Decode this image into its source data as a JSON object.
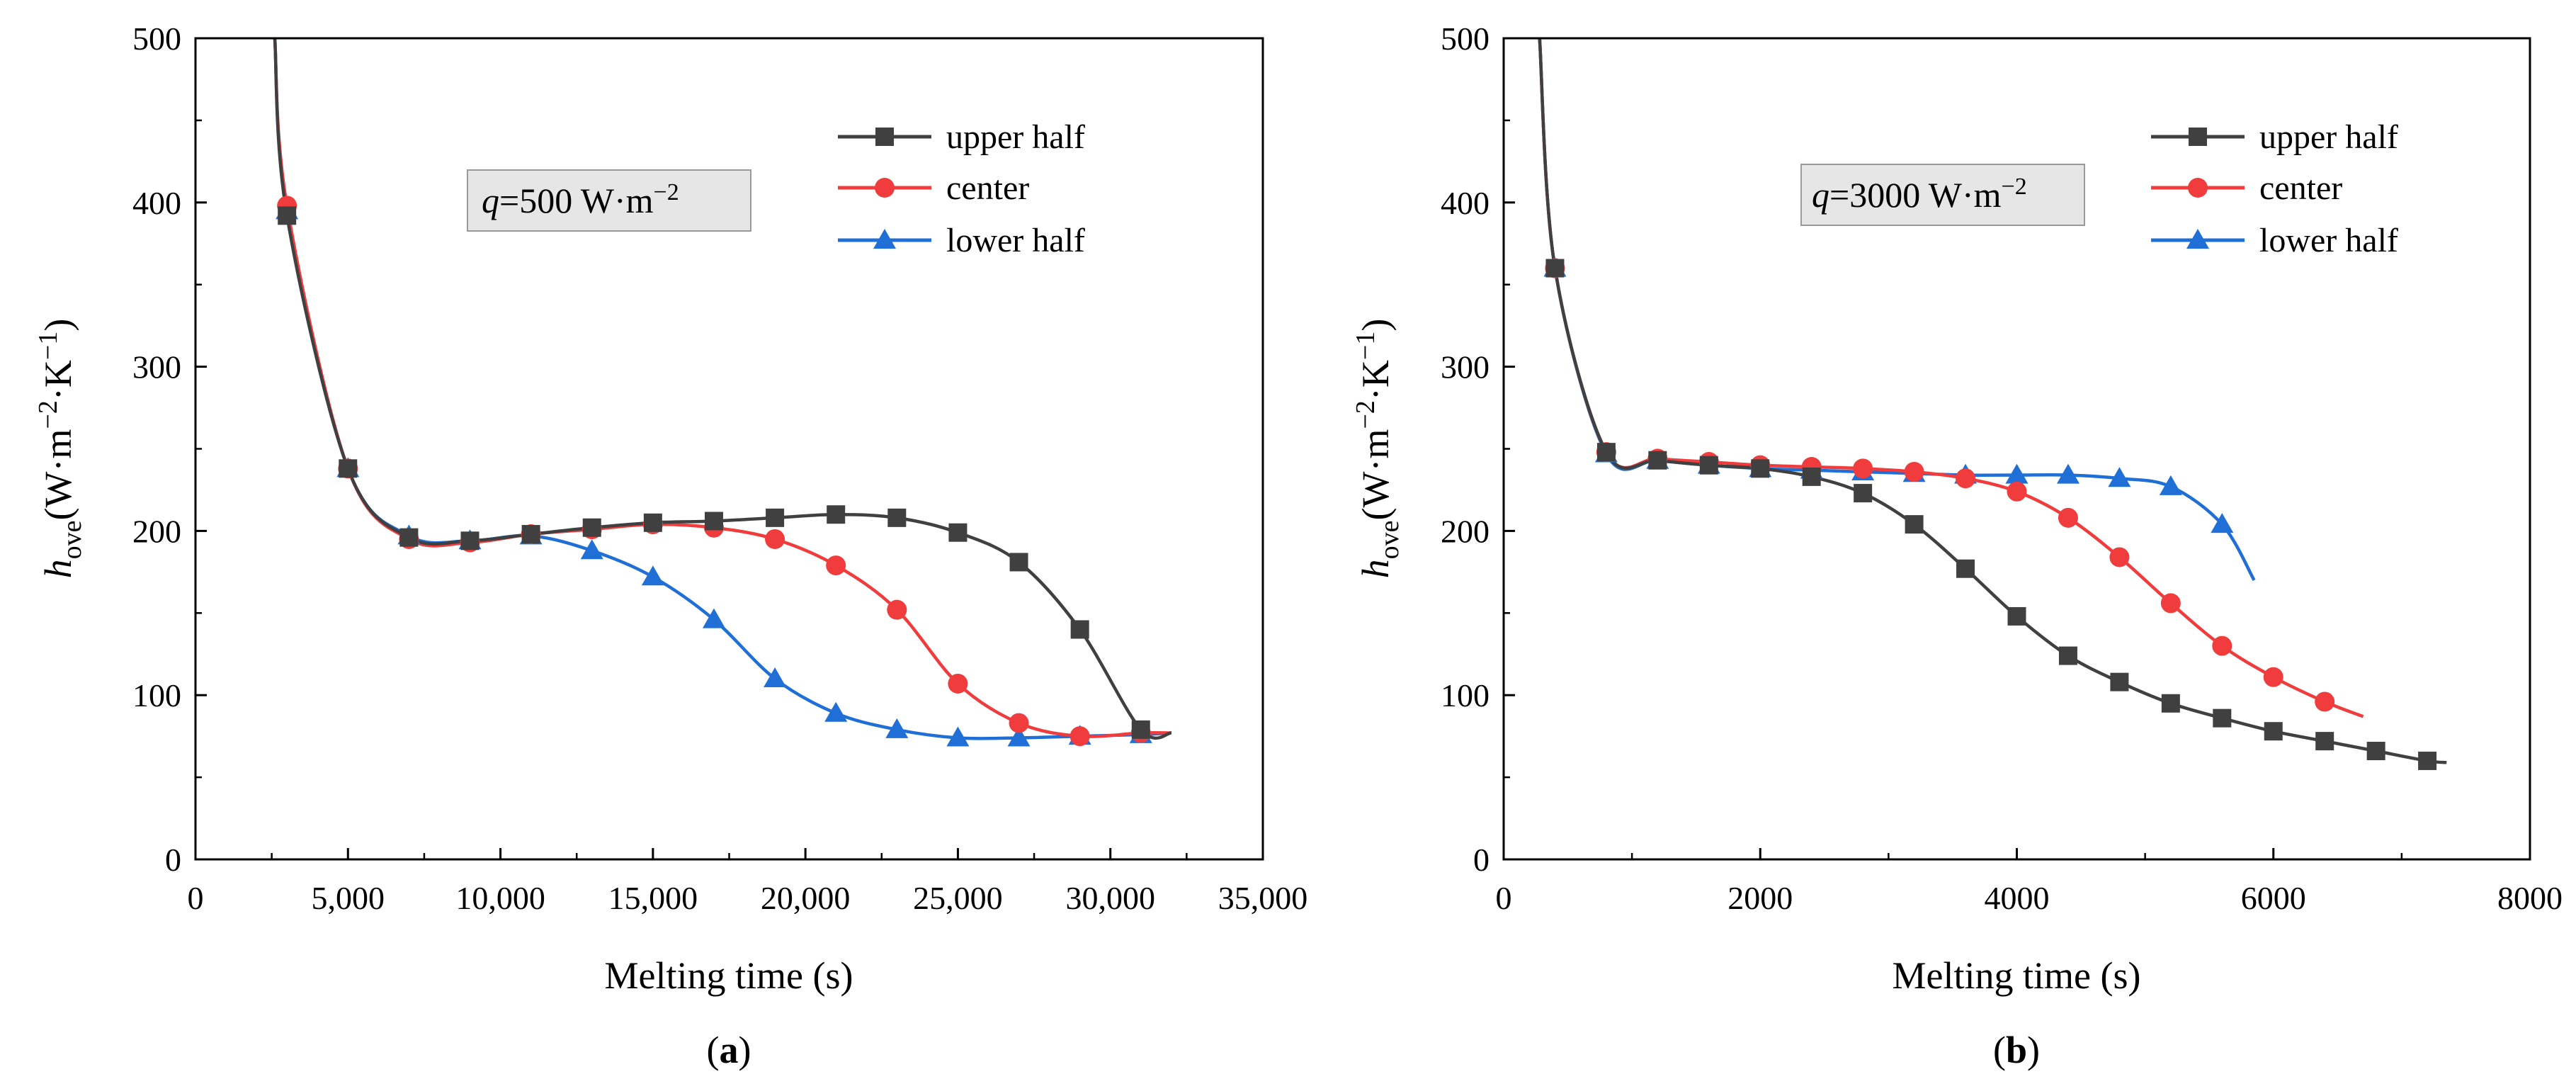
{
  "chart_data": [
    {
      "type": "line",
      "panel_label": "(a)",
      "annotation": {
        "italic": "q",
        "text": "=500 W·m",
        "sup": "−2"
      },
      "xlabel": "Melting time (s)",
      "ylabel": {
        "italic": "h",
        "sub": "ove",
        "text": "(W·m",
        "sup1": "−2",
        "mid": "·K",
        "sup2": "−1",
        "end": ")"
      },
      "xlim": [
        0,
        35000
      ],
      "ylim": [
        0,
        500
      ],
      "xticks": [
        "0",
        "5,000",
        "10,000",
        "15,000",
        "20,000",
        "25,000",
        "30,000",
        "35,000"
      ],
      "xtick_values": [
        0,
        5000,
        10000,
        15000,
        20000,
        25000,
        30000,
        35000
      ],
      "yticks": [
        "0",
        "100",
        "200",
        "300",
        "400",
        "500"
      ],
      "ytick_values": [
        0,
        100,
        200,
        300,
        400,
        500
      ],
      "legend_position": "top-right",
      "series": [
        {
          "name": "upper half",
          "color": "#404040",
          "marker": "square",
          "x": [
            2600,
            3000,
            5000,
            7000,
            9000,
            11000,
            13000,
            15000,
            17000,
            19000,
            21000,
            23000,
            25000,
            27000,
            29000,
            31000,
            32000
          ],
          "y": [
            500,
            392,
            238,
            196,
            194,
            198,
            202,
            205,
            206,
            208,
            210,
            208,
            199,
            181,
            140,
            79,
            77
          ],
          "marker_x": [
            3000,
            5000,
            7000,
            9000,
            11000,
            13000,
            15000,
            17000,
            19000,
            21000,
            23000,
            25000,
            27000,
            29000,
            31000
          ],
          "marker_y": [
            392,
            238,
            196,
            194,
            198,
            202,
            205,
            206,
            208,
            210,
            208,
            199,
            181,
            140,
            79
          ]
        },
        {
          "name": "center",
          "color": "#f03c3c",
          "marker": "circle",
          "x": [
            2600,
            3000,
            5000,
            7000,
            9000,
            11000,
            13000,
            15000,
            17000,
            19000,
            21000,
            23000,
            25000,
            27000,
            29000,
            31000,
            32000
          ],
          "y": [
            500,
            398,
            238,
            195,
            193,
            198,
            201,
            204,
            202,
            195,
            179,
            152,
            107,
            83,
            75,
            77,
            77
          ],
          "marker_x": [
            3000,
            5000,
            7000,
            9000,
            11000,
            13000,
            15000,
            17000,
            19000,
            21000,
            23000,
            25000,
            27000,
            29000,
            31000
          ],
          "marker_y": [
            398,
            238,
            195,
            193,
            198,
            201,
            204,
            202,
            195,
            179,
            152,
            107,
            83,
            75,
            77
          ]
        },
        {
          "name": "lower half",
          "color": "#1f6fd6",
          "marker": "triangle",
          "x": [
            2600,
            3000,
            5000,
            7000,
            9000,
            11000,
            13000,
            15000,
            17000,
            19000,
            21000,
            23000,
            25000,
            27000,
            29000,
            31000,
            32000
          ],
          "y": [
            500,
            395,
            238,
            197,
            194,
            197,
            188,
            172,
            146,
            110,
            89,
            79,
            74,
            74,
            75,
            76,
            77
          ],
          "marker_x": [
            3000,
            5000,
            7000,
            9000,
            11000,
            13000,
            15000,
            17000,
            19000,
            21000,
            23000,
            25000,
            27000,
            29000,
            31000
          ],
          "marker_y": [
            395,
            238,
            197,
            194,
            197,
            188,
            172,
            146,
            110,
            89,
            79,
            74,
            74,
            75,
            76
          ]
        }
      ]
    },
    {
      "type": "line",
      "panel_label": "(b)",
      "annotation": {
        "italic": "q",
        "text": "=3000 W·m",
        "sup": "−2"
      },
      "xlabel": "Melting time (s)",
      "ylabel": {
        "italic": "h",
        "sub": "ove",
        "text": "(W·m",
        "sup1": "−2",
        "mid": "·K",
        "sup2": "−1",
        "end": ")"
      },
      "xlim": [
        0,
        8000
      ],
      "ylim": [
        0,
        500
      ],
      "xticks": [
        "0",
        "2000",
        "4000",
        "6000",
        "8000"
      ],
      "xtick_values": [
        0,
        2000,
        4000,
        6000,
        8000
      ],
      "yticks": [
        "0",
        "100",
        "200",
        "300",
        "400",
        "500"
      ],
      "ytick_values": [
        0,
        100,
        200,
        300,
        400,
        500
      ],
      "legend_position": "top-right",
      "series": [
        {
          "name": "upper half",
          "color": "#404040",
          "marker": "square",
          "x": [
            280,
            400,
            800,
            1200,
            1600,
            2000,
            2400,
            2800,
            3200,
            3600,
            4000,
            4400,
            4800,
            5200,
            5600,
            6000,
            6400,
            6800,
            7200,
            7350
          ],
          "y": [
            500,
            360,
            248,
            243,
            240,
            238,
            233,
            223,
            204,
            177,
            148,
            124,
            108,
            95,
            86,
            78,
            72,
            66,
            60,
            59
          ],
          "marker_x": [
            400,
            800,
            1200,
            1600,
            2000,
            2400,
            2800,
            3200,
            3600,
            4000,
            4400,
            4800,
            5200,
            5600,
            6000,
            6400,
            6800,
            7200
          ],
          "marker_y": [
            360,
            248,
            243,
            240,
            238,
            233,
            223,
            204,
            177,
            148,
            124,
            108,
            95,
            86,
            78,
            72,
            66,
            60
          ]
        },
        {
          "name": "center",
          "color": "#f03c3c",
          "marker": "circle",
          "x": [
            280,
            400,
            800,
            1200,
            1600,
            2000,
            2400,
            2800,
            3200,
            3600,
            4000,
            4400,
            4800,
            5200,
            5600,
            6000,
            6400,
            6700
          ],
          "y": [
            500,
            360,
            248,
            244,
            242,
            240,
            239,
            238,
            236,
            232,
            224,
            208,
            184,
            156,
            130,
            111,
            96,
            87
          ],
          "marker_x": [
            400,
            800,
            1200,
            1600,
            2000,
            2400,
            2800,
            3200,
            3600,
            4000,
            4400,
            4800,
            5200,
            5600,
            6000,
            6400
          ],
          "marker_y": [
            360,
            248,
            244,
            242,
            240,
            239,
            238,
            236,
            232,
            224,
            208,
            184,
            156,
            130,
            111,
            96
          ]
        },
        {
          "name": "lower half",
          "color": "#1f6fd6",
          "marker": "triangle",
          "x": [
            280,
            400,
            800,
            1200,
            1600,
            2000,
            2400,
            2800,
            3200,
            3600,
            4000,
            4400,
            4800,
            5200,
            5600,
            5850
          ],
          "y": [
            500,
            360,
            247,
            243,
            240,
            238,
            237,
            236,
            235,
            234,
            234,
            234,
            232,
            227,
            204,
            170
          ],
          "marker_x": [
            400,
            800,
            1200,
            1600,
            2000,
            2400,
            2800,
            3200,
            3600,
            4000,
            4400,
            4800,
            5200,
            5600
          ],
          "marker_y": [
            360,
            247,
            243,
            240,
            238,
            237,
            236,
            235,
            234,
            234,
            234,
            232,
            227,
            204
          ]
        }
      ]
    }
  ]
}
